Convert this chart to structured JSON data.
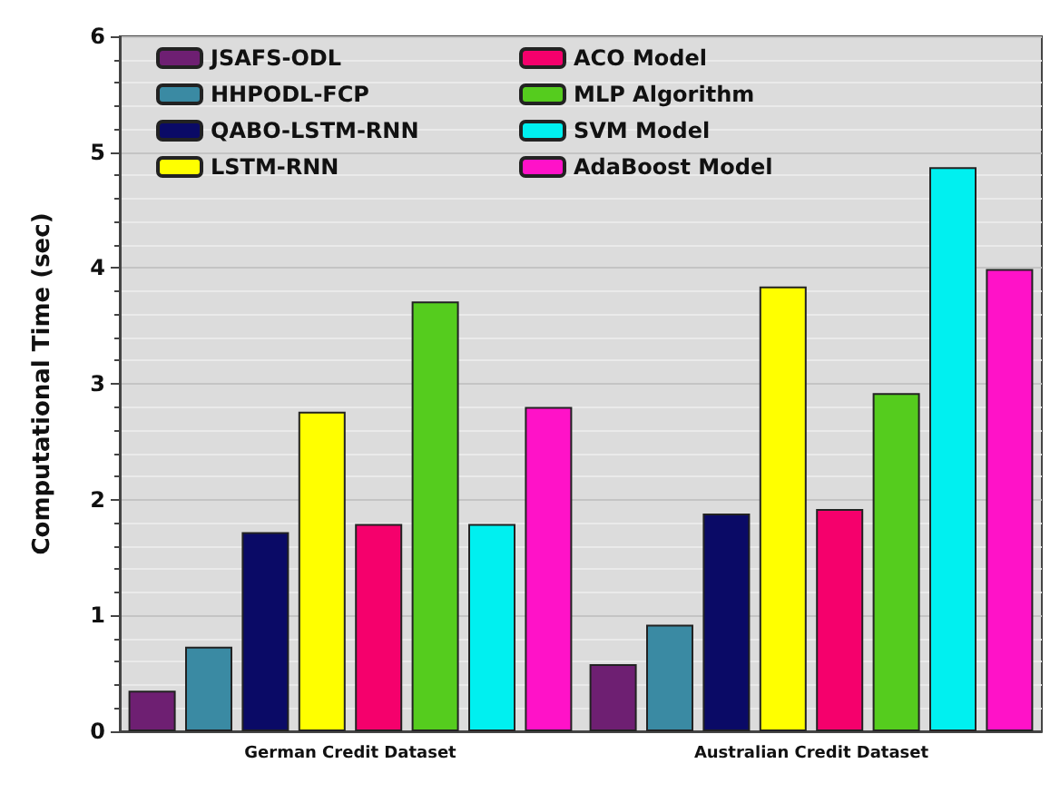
{
  "chart_data": {
    "type": "bar",
    "ylabel": "Computational Time (sec)",
    "categories": [
      "German Credit Dataset",
      "Australian Credit Dataset"
    ],
    "series": [
      {
        "name": "JSAFS-ODL",
        "color": "#6e1f72",
        "values": [
          0.35,
          0.58
        ]
      },
      {
        "name": "HHPODL-FCP",
        "color": "#3a8aa3",
        "values": [
          0.73,
          0.92
        ]
      },
      {
        "name": "QABO-LSTM-RNN",
        "color": "#0a0a66",
        "values": [
          1.72,
          1.88
        ]
      },
      {
        "name": "LSTM-RNN",
        "color": "#ffff00",
        "values": [
          2.76,
          3.84
        ]
      },
      {
        "name": "ACO Model",
        "color": "#f5006c",
        "values": [
          1.79,
          1.92
        ]
      },
      {
        "name": "MLP Algorithm",
        "color": "#55cc1e",
        "values": [
          3.71,
          2.92
        ]
      },
      {
        "name": "SVM Model",
        "color": "#00f0f0",
        "values": [
          1.79,
          4.87
        ]
      },
      {
        "name": "AdaBoost Model",
        "color": "#ff12c8",
        "values": [
          2.8,
          3.99
        ]
      }
    ],
    "ylim": [
      0,
      6
    ],
    "yticks": [
      0,
      1,
      2,
      3,
      4,
      5,
      6
    ],
    "grid": "y",
    "legend": "top left"
  }
}
